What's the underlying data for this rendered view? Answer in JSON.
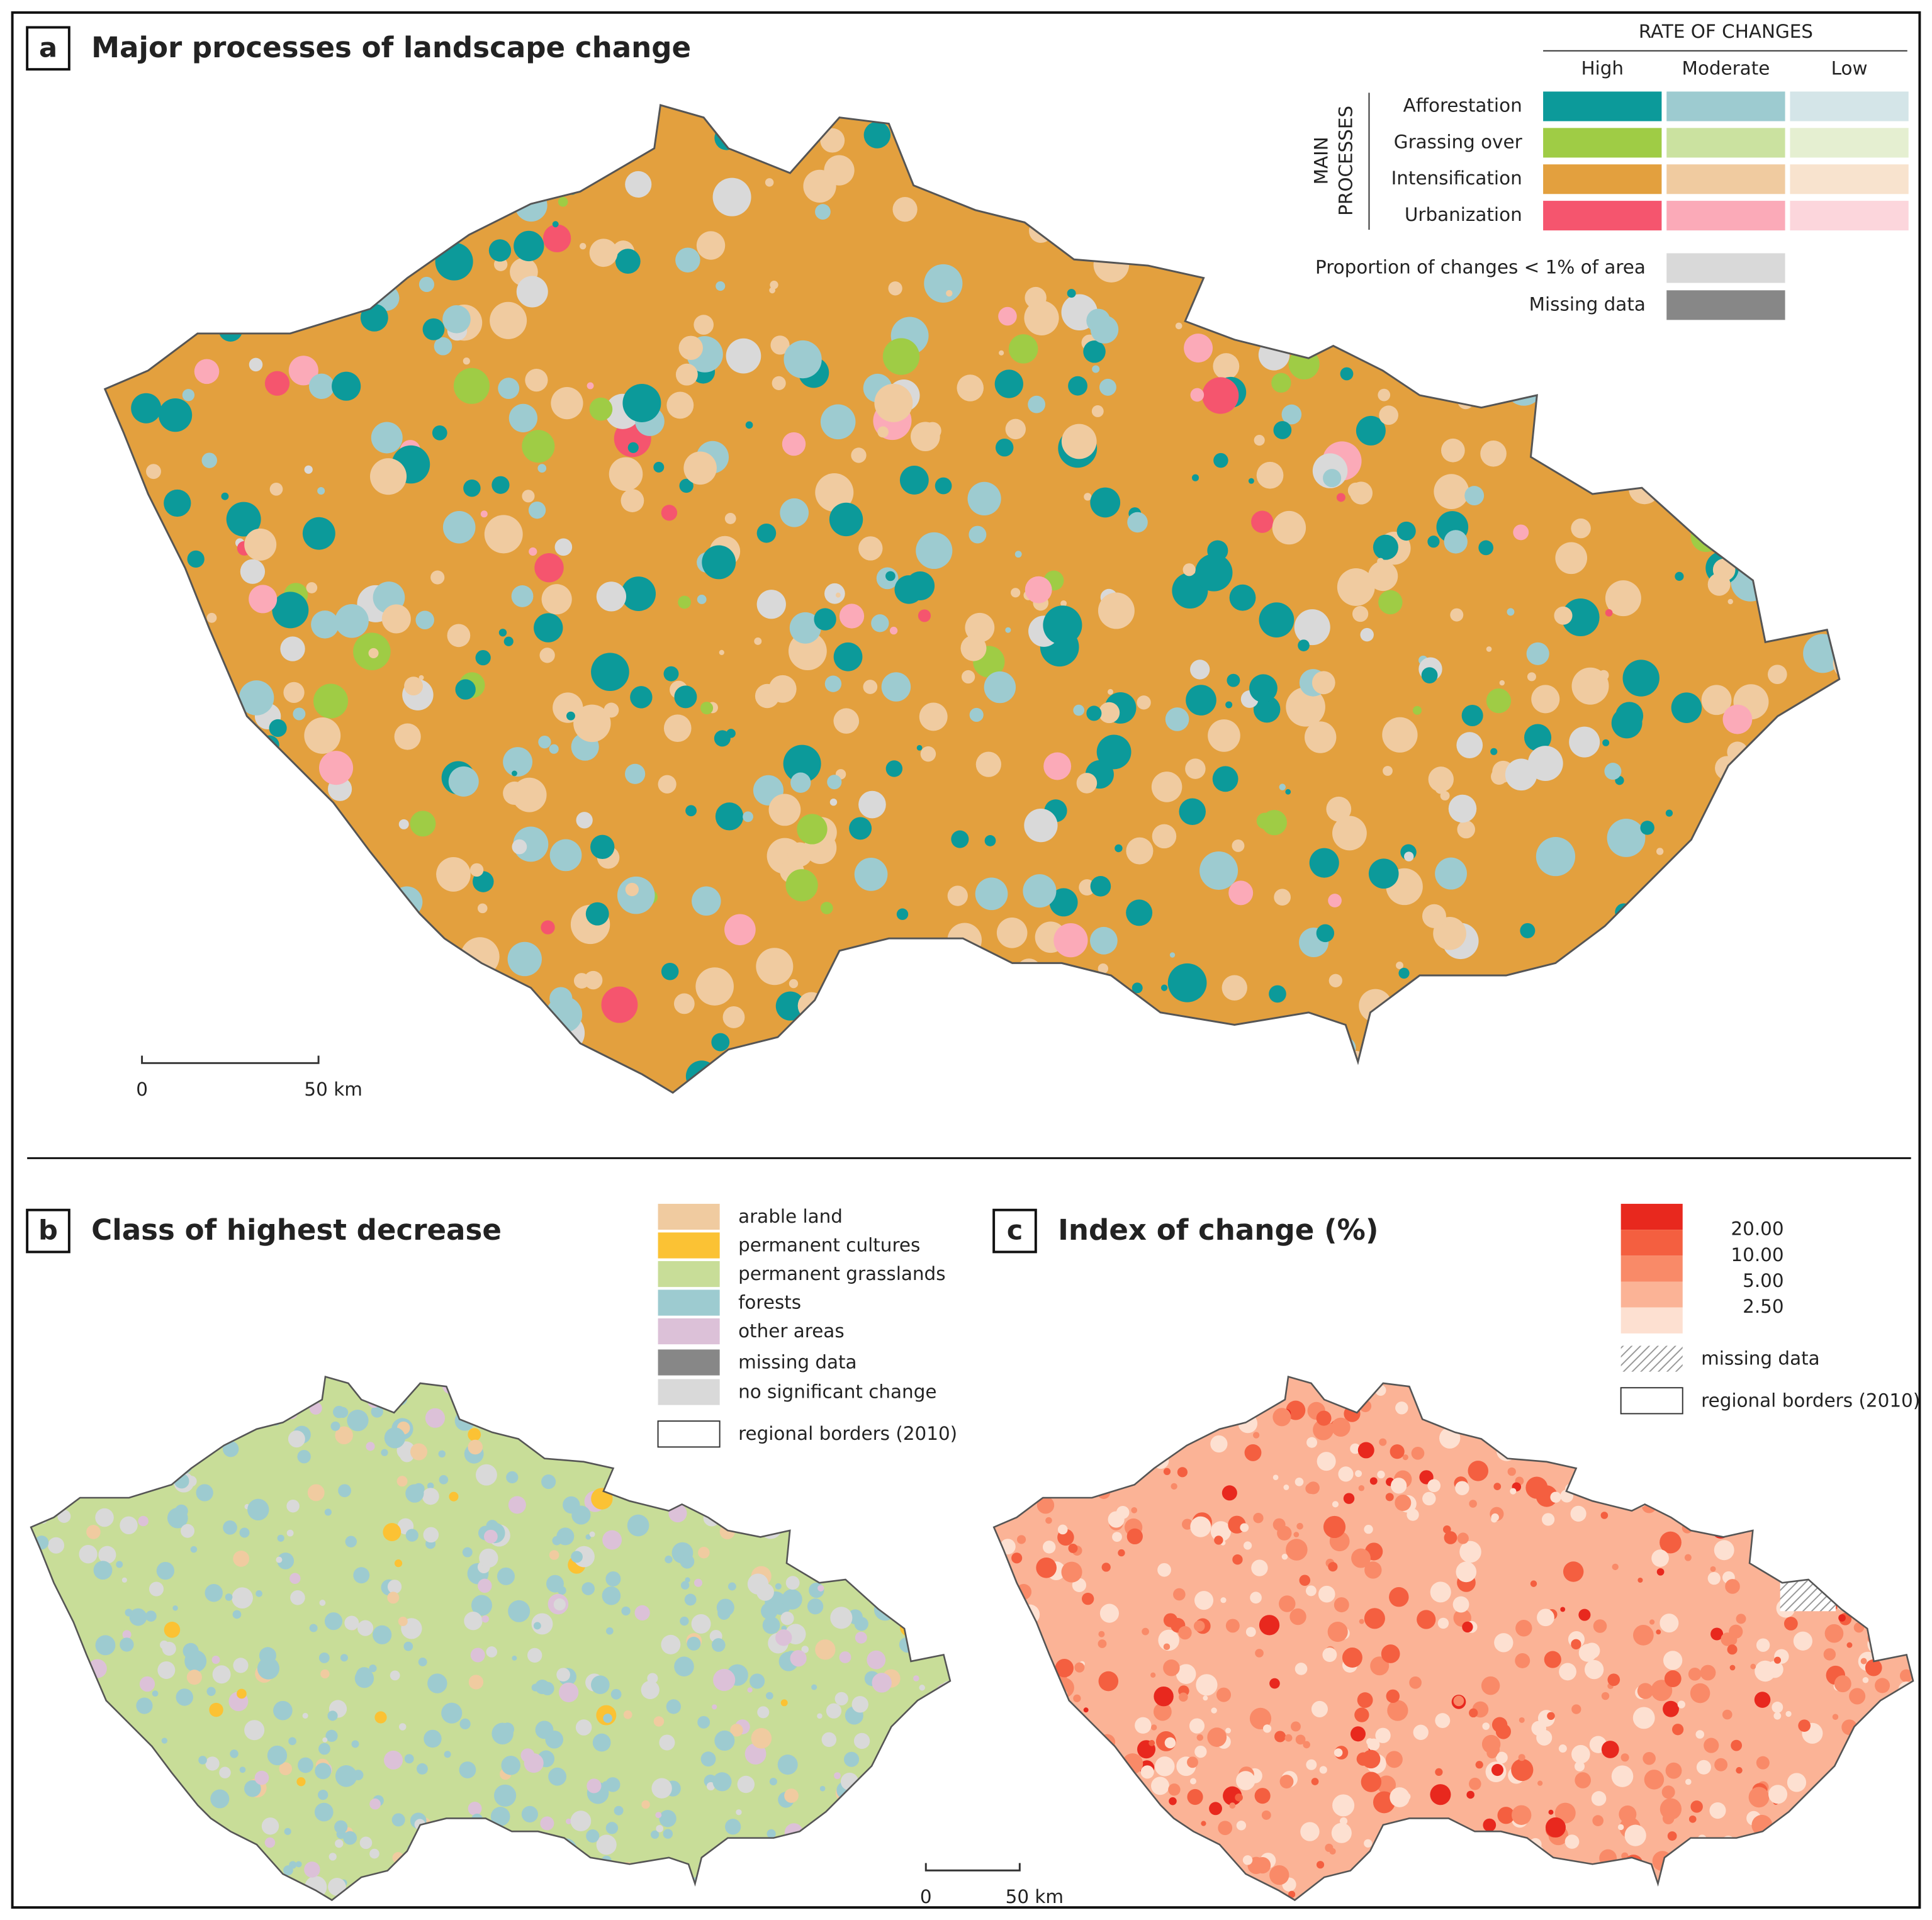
{
  "panel_a": {
    "letter": "a",
    "title": "Major processes of landscape change",
    "legend": {
      "heading": "RATE OF CHANGES",
      "columns": [
        "High",
        "Moderate",
        "Low"
      ],
      "row_heading": [
        "MAIN",
        "PROCESSES"
      ],
      "rows": [
        {
          "label": "Afforestation",
          "colors": [
            "#0c9a9a",
            "#9dcbd0",
            "#d4e5e8"
          ]
        },
        {
          "label": "Grassing over",
          "colors": [
            "#9fcc45",
            "#cbe2a0",
            "#e5efd1"
          ]
        },
        {
          "label": "Intensification",
          "colors": [
            "#e3a03e",
            "#f0cba0",
            "#f8e3ce"
          ]
        },
        {
          "label": "Urbanization",
          "colors": [
            "#f5556e",
            "#fbaab8",
            "#fcd6dc"
          ]
        }
      ],
      "extra": [
        {
          "label": "Proportion of changes < 1% of area",
          "color": "#d9d9d9"
        },
        {
          "label": "Missing data",
          "color": "#878787"
        }
      ]
    },
    "scale_bar": [
      "0",
      "50 km"
    ]
  },
  "panel_b": {
    "letter": "b",
    "title": "Class of highest decrease",
    "legend": [
      {
        "label": "arable land",
        "color": "#f0cba0"
      },
      {
        "label": "permanent cultures",
        "color": "#fbc234"
      },
      {
        "label": "permanent grasslands",
        "color": "#c8dd98"
      },
      {
        "label": "forests",
        "color": "#9dcbd0"
      },
      {
        "label": "other areas",
        "color": "#dcc1d8"
      }
    ],
    "extra": [
      {
        "label": "missing data",
        "color": "#878787"
      },
      {
        "label": "no significant change",
        "color": "#d9d9d9"
      },
      {
        "label": "regional borders (2010)",
        "color": "#ffffff"
      }
    ]
  },
  "panel_c": {
    "letter": "c",
    "title": "Index of change (%)",
    "class_colors": [
      "#e8281e",
      "#f45f40",
      "#f98a68",
      "#fbb396",
      "#fde0d1"
    ],
    "class_breaks": [
      "20.00",
      "10.00",
      "5.00",
      "2.50"
    ],
    "extra": [
      "missing data",
      "regional borders (2010)"
    ]
  },
  "scale_bar": [
    "0",
    "50 km"
  ]
}
